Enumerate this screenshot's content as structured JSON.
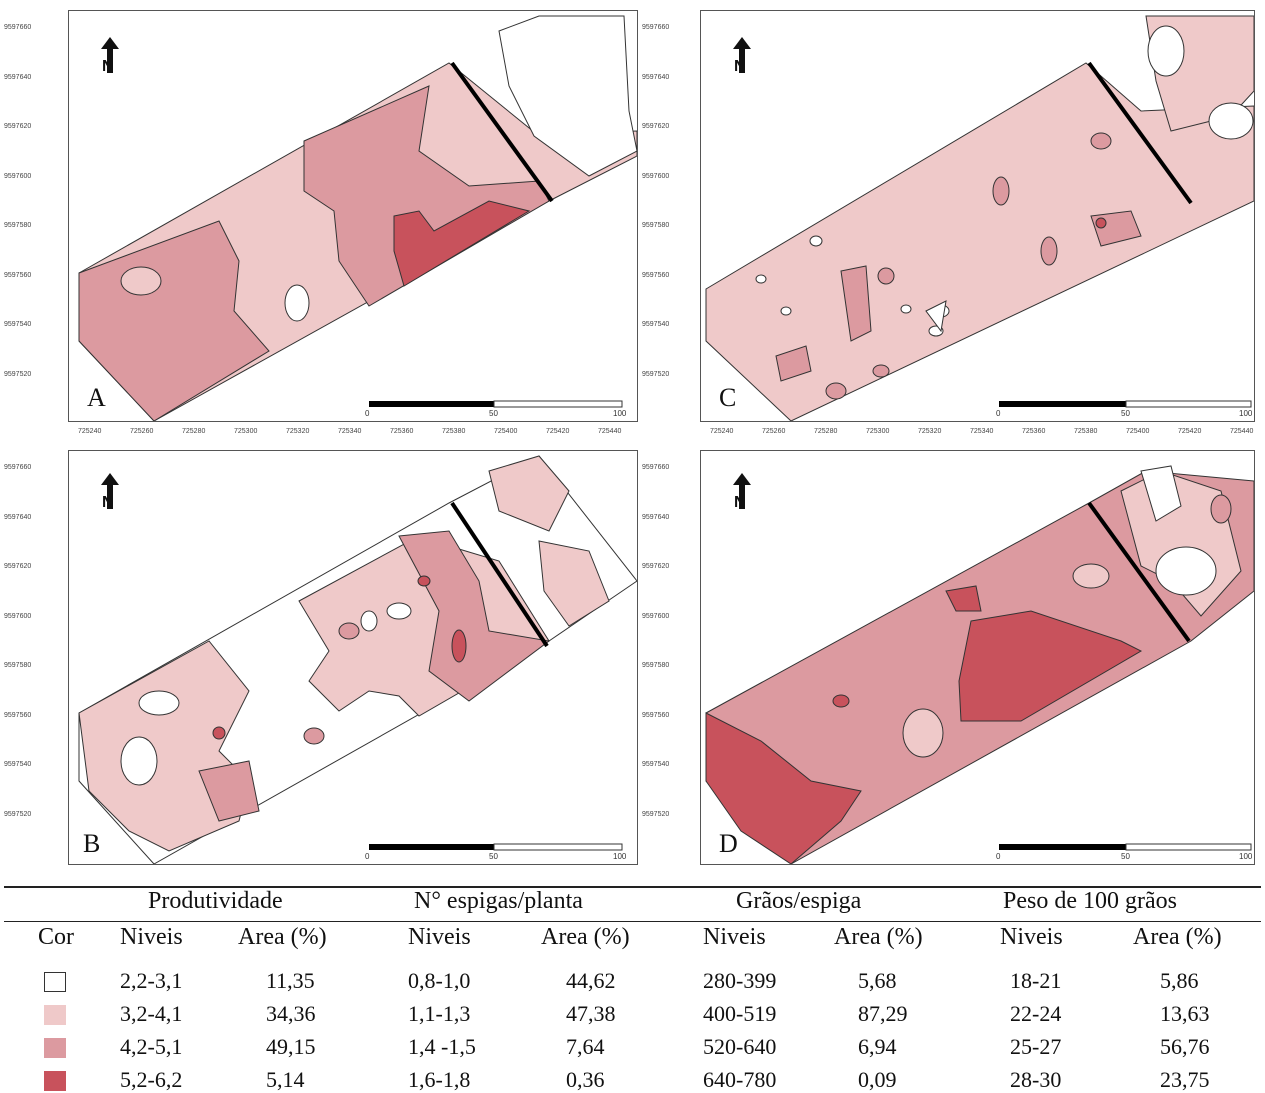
{
  "maps": {
    "y_ticks": [
      "9597660",
      "9597640",
      "9597620",
      "9597600",
      "9597580",
      "9597560",
      "9597540",
      "9597520"
    ],
    "x_ticks": [
      "725240",
      "725260",
      "725280",
      "725300",
      "725320",
      "725340",
      "725360",
      "725380",
      "725400",
      "725420",
      "725440"
    ],
    "scale_labels": [
      "0",
      "50",
      "100"
    ],
    "panels": [
      {
        "label": "A",
        "variable": "Produtividade"
      },
      {
        "label": "C",
        "variable": "Grãos/espiga"
      },
      {
        "label": "B",
        "variable": "Nº espigas/planta"
      },
      {
        "label": "D",
        "variable": "Peso de 100 grãos"
      }
    ]
  },
  "colors": {
    "class1": "#ffffff",
    "class2": "#efc9c9",
    "class3": "#dc9aa0",
    "class4": "#c8525c",
    "outline": "#333333"
  },
  "legend": {
    "headers": [
      "Produtividade",
      "N° espigas/planta",
      "Grãos/espiga",
      "Peso de 100 grãos"
    ],
    "cor": "Cor",
    "niveis": "Niveis",
    "area": "Area (%)",
    "rows": [
      [
        "2,2-3,1",
        "11,35",
        "0,8-1,0",
        "44,62",
        "280-399",
        "5,68",
        "18-21",
        "5,86"
      ],
      [
        "3,2-4,1",
        "34,36",
        "1,1-1,3",
        "47,38",
        "400-519",
        "87,29",
        "22-24",
        "13,63"
      ],
      [
        "4,2-5,1",
        "49,15",
        "1,4 -1,5",
        "7,64",
        "520-640",
        "6,94",
        "25-27",
        "56,76"
      ],
      [
        "5,2-6,2",
        "5,14",
        "1,6-1,8",
        "0,36",
        "640-780",
        "0,09",
        "28-30",
        "23,75"
      ]
    ]
  }
}
